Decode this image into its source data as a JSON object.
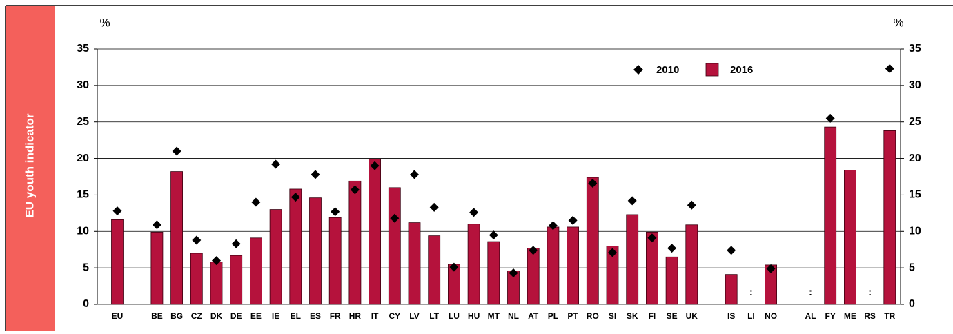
{
  "sidebar": "EU youth indicator",
  "chart_data": {
    "type": "bar_with_markers",
    "ylabel": "%",
    "categories": [
      "EU",
      null,
      "BE",
      "BG",
      "CZ",
      "DK",
      "DE",
      "EE",
      "IE",
      "EL",
      "ES",
      "FR",
      "HR",
      "IT",
      "CY",
      "LV",
      "LT",
      "LU",
      "HU",
      "MT",
      "NL",
      "AT",
      "PL",
      "PT",
      "RO",
      "SI",
      "SK",
      "FI",
      "SE",
      "UK",
      null,
      "IS",
      "LI",
      "NO",
      null,
      "AL",
      "FY",
      "ME",
      "RS",
      "TR"
    ],
    "series": [
      {
        "name": "2010",
        "color": "#000000",
        "marker": "diamond",
        "values": [
          12.8,
          null,
          10.9,
          21.0,
          8.8,
          6.0,
          8.3,
          14.0,
          19.2,
          14.7,
          17.8,
          12.7,
          15.7,
          19.0,
          11.8,
          17.8,
          13.3,
          5.1,
          12.6,
          9.5,
          4.3,
          7.4,
          10.8,
          11.5,
          16.6,
          7.1,
          14.2,
          9.1,
          7.7,
          13.6,
          null,
          7.4,
          null,
          4.9,
          null,
          null,
          25.5,
          null,
          null,
          32.3
        ],
        "value_labels": [
          null,
          null,
          null,
          null,
          null,
          null,
          null,
          null,
          null,
          null,
          null,
          null,
          null,
          null,
          null,
          null,
          null,
          null,
          null,
          null,
          null,
          null,
          null,
          null,
          null,
          null,
          null,
          null,
          null,
          null,
          null,
          null,
          ":",
          null,
          null,
          ":",
          null,
          null,
          ":",
          null
        ]
      },
      {
        "name": "2016",
        "color": "#b5123c",
        "marker": "bar",
        "values": [
          11.6,
          null,
          9.9,
          18.2,
          7.0,
          5.8,
          6.7,
          9.1,
          13.0,
          15.8,
          14.6,
          11.9,
          16.9,
          19.9,
          16.0,
          11.2,
          9.4,
          5.5,
          11.0,
          8.6,
          4.6,
          7.7,
          10.6,
          10.6,
          17.4,
          8.0,
          12.3,
          9.9,
          6.5,
          10.9,
          null,
          4.1,
          null,
          5.4,
          null,
          null,
          24.3,
          18.4,
          null,
          23.8
        ]
      }
    ],
    "ylim": [
      0,
      35
    ],
    "yticks": [
      0,
      5,
      10,
      15,
      20,
      25,
      30,
      35
    ],
    "y2lim": [
      0,
      35
    ],
    "y2ticks": [
      0,
      5,
      10,
      15,
      20,
      25,
      30,
      35
    ],
    "grid": true,
    "legend": "upper right"
  }
}
